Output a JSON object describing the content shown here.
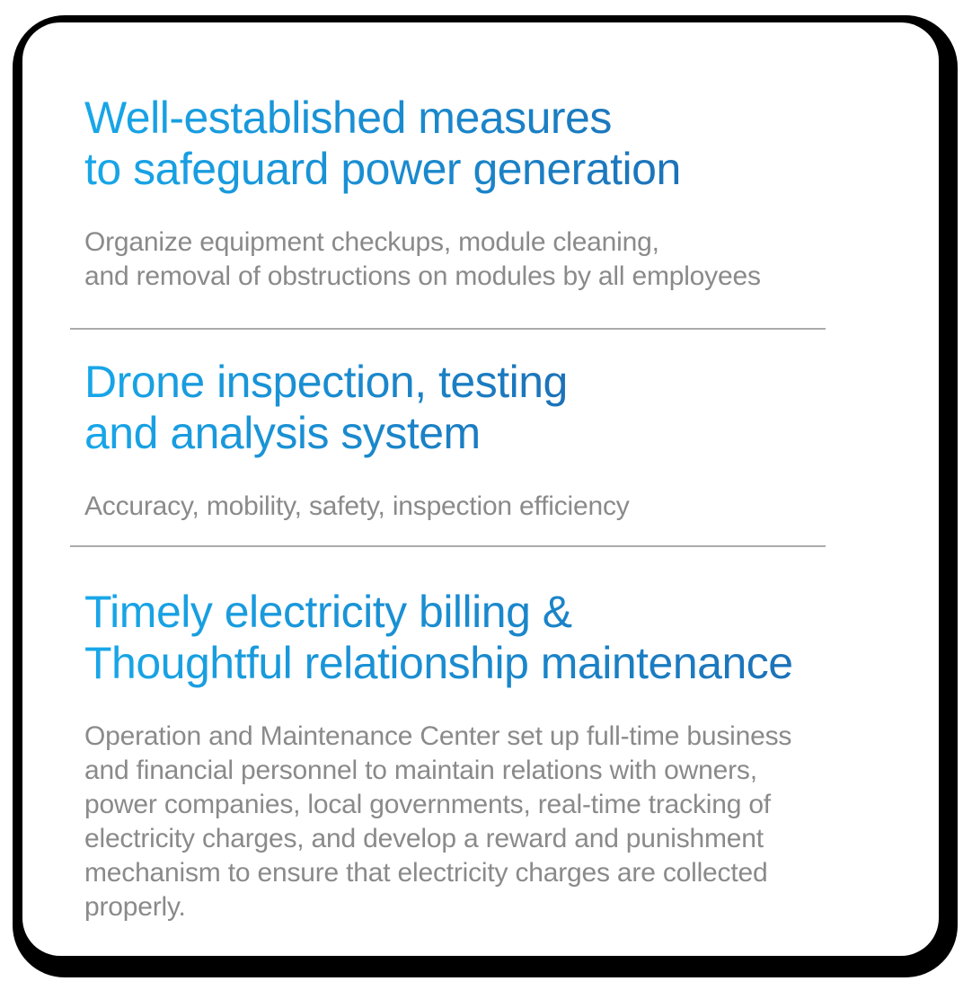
{
  "card": {
    "colors": {
      "heading_gradient_start": "#18a7e9",
      "heading_gradient_end": "#1c72b8",
      "body_text": "#8a8a8a",
      "divider": "#ababab",
      "card_background": "#ffffff",
      "card_shadow": "#000000"
    },
    "sections": [
      {
        "heading_lines": [
          "Well-established measures",
          "to safeguard power generation"
        ],
        "body_lines": [
          "Organize equipment checkups, module cleaning,",
          "and removal of obstructions on modules by all employees"
        ]
      },
      {
        "heading_lines": [
          "Drone inspection, testing",
          "and analysis system"
        ],
        "body_lines": [
          "Accuracy, mobility, safety, inspection efficiency"
        ]
      },
      {
        "heading_lines": [
          "Timely electricity billing &",
          "Thoughtful relationship maintenance"
        ],
        "body_lines": [
          "Operation and Maintenance Center set up full-time business",
          "and financial personnel to maintain relations with owners,",
          "power companies, local governments, real-time tracking of",
          "electricity charges, and develop a reward and punishment",
          "mechanism to ensure that electricity charges are collected",
          "properly."
        ]
      }
    ]
  }
}
